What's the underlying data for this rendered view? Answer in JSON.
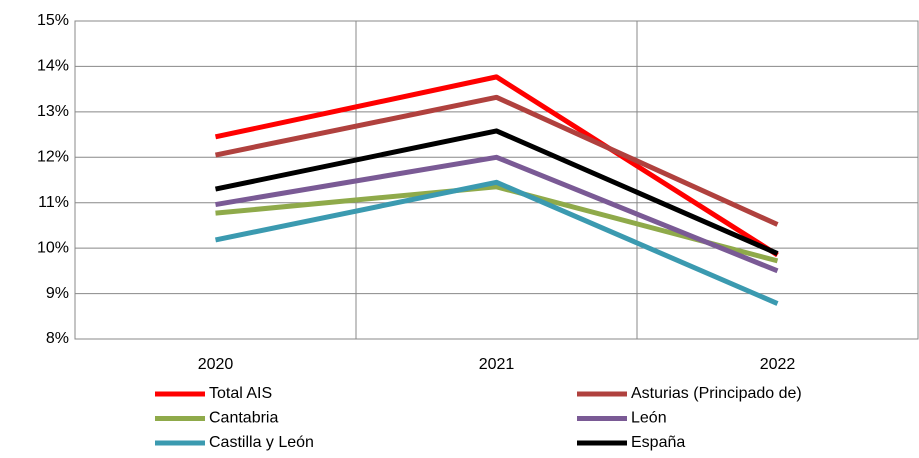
{
  "chart_data": {
    "type": "line",
    "categories": [
      "2020",
      "2021",
      "2022"
    ],
    "series": [
      {
        "name": "Total AIS",
        "color": "#ff0000",
        "values": [
          12.45,
          13.77,
          9.85
        ]
      },
      {
        "name": "Asturias (Principado de)",
        "color": "#b0413e",
        "values": [
          12.05,
          13.32,
          10.52
        ]
      },
      {
        "name": "Cantabria",
        "color": "#8faa4a",
        "values": [
          10.77,
          11.35,
          9.72
        ]
      },
      {
        "name": "León",
        "color": "#7a5a95",
        "values": [
          10.96,
          12.0,
          9.5
        ]
      },
      {
        "name": "Castilla y León",
        "color": "#3b9ab0",
        "values": [
          10.18,
          11.45,
          8.78
        ]
      },
      {
        "name": "España",
        "color": "#000000",
        "values": [
          11.3,
          12.58,
          9.88
        ]
      }
    ],
    "ylim": [
      8,
      15
    ],
    "yticks": [
      {
        "value": 8,
        "label": "8%"
      },
      {
        "value": 9,
        "label": "9%"
      },
      {
        "value": 10,
        "label": "10%"
      },
      {
        "value": 11,
        "label": "11%"
      },
      {
        "value": 12,
        "label": "12%"
      },
      {
        "value": 13,
        "label": "13%"
      },
      {
        "value": 14,
        "label": "14%"
      },
      {
        "value": 15,
        "label": "15%"
      }
    ],
    "grid": true
  }
}
